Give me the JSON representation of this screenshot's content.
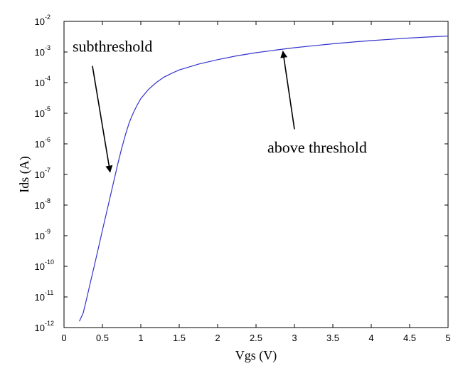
{
  "chart_data": {
    "type": "line",
    "xlabel": "Vgs (V)",
    "ylabel": "Ids (A)",
    "xlim": [
      0,
      5
    ],
    "ylim": [
      1e-12,
      0.01
    ],
    "yscale": "log",
    "grid": false,
    "x_ticks": [
      "0",
      "0.5",
      "1",
      "1.5",
      "2",
      "2.5",
      "3",
      "3.5",
      "4",
      "4.5",
      "5"
    ],
    "y_ticks": [
      {
        "base": "10",
        "exp": "-12"
      },
      {
        "base": "10",
        "exp": "-11"
      },
      {
        "base": "10",
        "exp": "-10"
      },
      {
        "base": "10",
        "exp": "-9"
      },
      {
        "base": "10",
        "exp": "-8"
      },
      {
        "base": "10",
        "exp": "-7"
      },
      {
        "base": "10",
        "exp": "-6"
      },
      {
        "base": "10",
        "exp": "-5"
      },
      {
        "base": "10",
        "exp": "-4"
      },
      {
        "base": "10",
        "exp": "-3"
      },
      {
        "base": "10",
        "exp": "-2"
      }
    ],
    "series": [
      {
        "color": "#3333cc",
        "x": [
          0.2,
          0.25,
          0.3,
          0.35,
          0.4,
          0.45,
          0.5,
          0.55,
          0.6,
          0.65,
          0.7,
          0.75,
          0.8,
          0.85,
          0.9,
          0.95,
          1.0,
          1.1,
          1.2,
          1.3,
          1.4,
          1.5,
          1.75,
          2.0,
          2.25,
          2.5,
          2.75,
          3.0,
          3.25,
          3.5,
          3.75,
          4.0,
          4.25,
          4.5,
          4.75,
          5.0
        ],
        "y": [
          1.6e-12,
          3e-12,
          1e-11,
          3.5e-11,
          1.2e-10,
          4.2e-10,
          1.5e-09,
          5.2e-09,
          1.8e-08,
          6.3e-08,
          2.2e-07,
          7e-07,
          2e-06,
          5e-06,
          1e-05,
          1.8e-05,
          3e-05,
          6e-05,
          0.0001,
          0.00015,
          0.0002,
          0.00026,
          0.0004,
          0.00056,
          0.00075,
          0.00095,
          0.00115,
          0.00138,
          0.0016,
          0.00185,
          0.0021,
          0.00235,
          0.0026,
          0.00285,
          0.0031,
          0.0033
        ]
      }
    ],
    "annotations": [
      {
        "text": "subthreshold",
        "arrow_from": [
          0.37,
          0.00035
        ],
        "arrow_to": [
          0.6,
          1.2e-07
        ]
      },
      {
        "text": "above threshold",
        "arrow_from": [
          3.0,
          3e-06
        ],
        "arrow_to": [
          2.85,
          0.00105
        ]
      }
    ]
  }
}
